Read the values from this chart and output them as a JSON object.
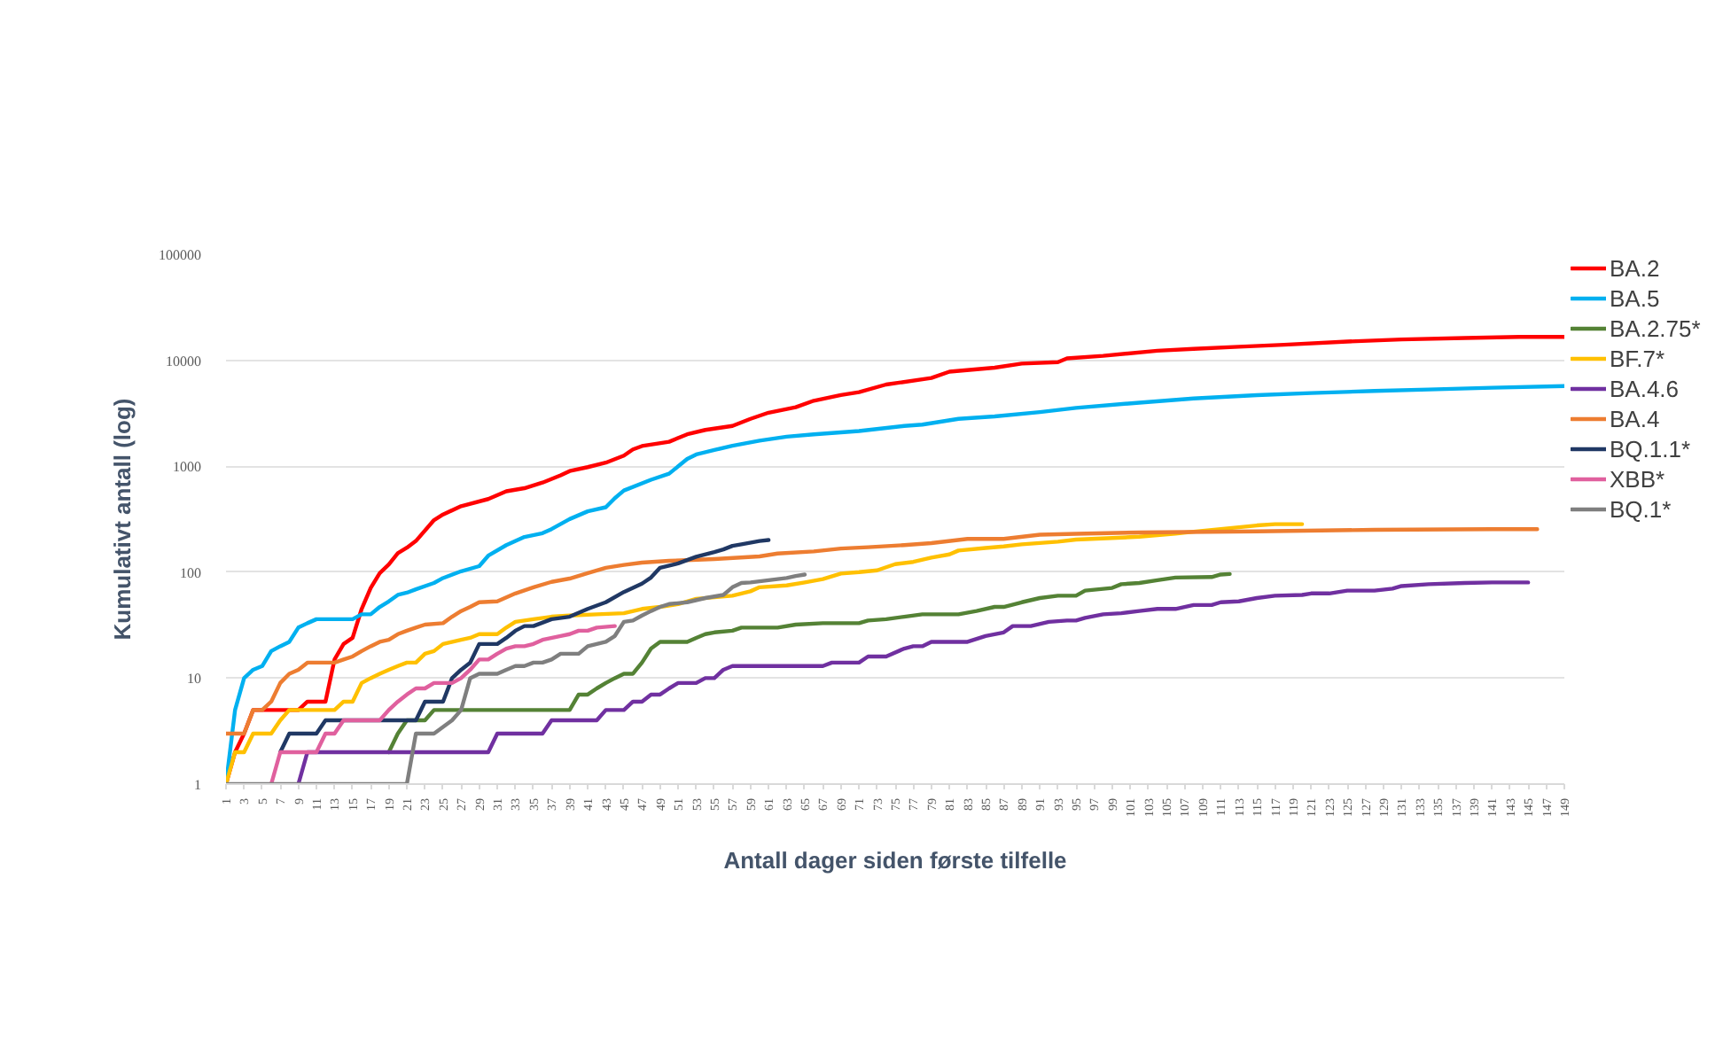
{
  "chart_data": {
    "type": "line",
    "xlabel": "Antall dager siden første tilfelle",
    "ylabel": "Kumulativt antall (log)",
    "log": "y",
    "xlim": [
      1,
      149
    ],
    "ylim": [
      1,
      100000
    ],
    "xticks": [
      1,
      3,
      5,
      7,
      9,
      11,
      13,
      15,
      17,
      19,
      21,
      23,
      25,
      27,
      29,
      31,
      33,
      35,
      37,
      39,
      41,
      43,
      45,
      47,
      49,
      51,
      53,
      55,
      57,
      59,
      61,
      63,
      65,
      67,
      69,
      71,
      73,
      75,
      77,
      79,
      81,
      83,
      85,
      87,
      89,
      91,
      93,
      95,
      97,
      99,
      101,
      103,
      105,
      107,
      109,
      111,
      113,
      115,
      117,
      119,
      121,
      123,
      125,
      127,
      129,
      131,
      133,
      135,
      137,
      139,
      141,
      143,
      145,
      147,
      149
    ],
    "yticks": [
      1,
      10,
      100,
      1000,
      10000,
      100000
    ],
    "grid": "y",
    "legend": "right",
    "line_style": "solid",
    "series": [
      {
        "name": "BA.2",
        "color": "#ff0000",
        "x": [
          1,
          2,
          3,
          4,
          9,
          10,
          12,
          13,
          14,
          15,
          16,
          17,
          18,
          19,
          20,
          21,
          22,
          24,
          25,
          27,
          30,
          32,
          34,
          36,
          38,
          39,
          41,
          43,
          45,
          46,
          47,
          50,
          52,
          54,
          57,
          59,
          61,
          64,
          66,
          69,
          71,
          74,
          79,
          81,
          86,
          89,
          93,
          94,
          98,
          104,
          108,
          113,
          118,
          125,
          131,
          138,
          144,
          149
        ],
        "values": [
          1,
          2,
          3,
          5,
          5,
          6,
          6,
          15,
          21,
          24,
          45,
          71,
          98,
          118,
          151,
          170,
          197,
          310,
          350,
          420,
          490,
          580,
          620,
          700,
          820,
          900,
          980,
          1080,
          1260,
          1440,
          1550,
          1700,
          2000,
          2200,
          2400,
          2800,
          3200,
          3600,
          4150,
          4700,
          5000,
          5900,
          6800,
          7800,
          8500,
          9300,
          9600,
          10400,
          11000,
          12300,
          12800,
          13400,
          14000,
          15000,
          15700,
          16200,
          16600,
          16600
        ]
      },
      {
        "name": "BA.5",
        "color": "#00b0f0",
        "x": [
          1,
          2,
          3,
          4,
          5,
          6,
          7,
          8,
          9,
          10,
          11,
          15,
          16,
          17,
          18,
          19,
          20,
          21,
          22,
          24,
          25,
          27,
          29,
          30,
          32,
          34,
          36,
          37,
          39,
          41,
          43,
          44,
          45,
          48,
          50,
          52,
          53,
          55,
          57,
          60,
          63,
          66,
          71,
          76,
          78,
          82,
          86,
          91,
          95,
          102,
          108,
          115,
          121,
          128,
          134,
          141,
          149
        ],
        "values": [
          1,
          5,
          10,
          12,
          13,
          18,
          20,
          22,
          30,
          33,
          36,
          36,
          40,
          40,
          47,
          53,
          61,
          64,
          69,
          79,
          88,
          102,
          114,
          143,
          180,
          215,
          233,
          255,
          317,
          375,
          410,
          500,
          590,
          745,
          850,
          1170,
          1290,
          1420,
          1560,
          1740,
          1900,
          2000,
          2150,
          2400,
          2470,
          2800,
          2950,
          3240,
          3550,
          3980,
          4360,
          4680,
          4900,
          5130,
          5300,
          5500,
          5700
        ]
      },
      {
        "name": "BA.2.75*",
        "color": "#548235",
        "x": [
          19,
          20,
          21,
          23,
          24,
          39,
          40,
          41,
          42,
          43,
          44,
          45,
          46,
          47,
          48,
          49,
          50,
          52,
          53,
          54,
          55,
          57,
          58,
          62,
          64,
          67,
          71,
          72,
          74,
          76,
          78,
          82,
          84,
          86,
          87,
          89,
          91,
          93,
          95,
          96,
          99,
          100,
          102,
          104,
          106,
          110,
          111,
          112
        ],
        "values": [
          2,
          3,
          4,
          4,
          5,
          5,
          7,
          7,
          8,
          9,
          10,
          11,
          11,
          14,
          19,
          22,
          22,
          22,
          24,
          26,
          27,
          28,
          30,
          30,
          32,
          33,
          33,
          35,
          36,
          38,
          40,
          40,
          43,
          47,
          47,
          52,
          57,
          60,
          60,
          67,
          71,
          77,
          79,
          84,
          89,
          90,
          95,
          96
        ]
      },
      {
        "name": "BF.7*",
        "color": "#ffc000",
        "x": [
          1,
          2,
          3,
          4,
          6,
          7,
          8,
          13,
          14,
          15,
          16,
          17,
          18,
          19,
          20,
          21,
          22,
          23,
          24,
          25,
          27,
          28,
          29,
          31,
          32,
          33,
          35,
          37,
          39,
          42,
          45,
          47,
          49,
          51,
          53,
          57,
          59,
          60,
          63,
          65,
          67,
          69,
          71,
          73,
          75,
          77,
          79,
          81,
          82,
          85,
          87,
          89,
          93,
          95,
          99,
          102,
          106,
          108,
          111,
          115,
          117,
          120
        ],
        "values": [
          1,
          2,
          2,
          3,
          3,
          4,
          5,
          5,
          6,
          6,
          9,
          10,
          11,
          12,
          13,
          14,
          14,
          17,
          18,
          21,
          23,
          24,
          26,
          26,
          30,
          34,
          36,
          38,
          39,
          40,
          41,
          45,
          47,
          50,
          56,
          60,
          66,
          72,
          75,
          80,
          86,
          97,
          100,
          104,
          119,
          125,
          137,
          147,
          160,
          169,
          175,
          183,
          194,
          203,
          210,
          216,
          231,
          241,
          255,
          276,
          284,
          284
        ]
      },
      {
        "name": "BA.4.6",
        "color": "#7030a0",
        "x": [
          9,
          10,
          30,
          31,
          36,
          37,
          42,
          43,
          45,
          46,
          47,
          48,
          49,
          50,
          51,
          53,
          54,
          55,
          56,
          57,
          67,
          68,
          71,
          72,
          74,
          76,
          77,
          78,
          79,
          83,
          85,
          87,
          88,
          90,
          92,
          94,
          95,
          96,
          98,
          100,
          102,
          104,
          106,
          108,
          110,
          111,
          113,
          115,
          117,
          120,
          121,
          123,
          125,
          128,
          130,
          131,
          134,
          138,
          141,
          145
        ],
        "values": [
          1,
          2,
          2,
          3,
          3,
          4,
          4,
          5,
          5,
          6,
          6,
          7,
          7,
          8,
          9,
          9,
          10,
          10,
          12,
          13,
          13,
          14,
          14,
          16,
          16,
          19,
          20,
          20,
          22,
          22,
          25,
          27,
          31,
          31,
          34,
          35,
          35,
          37,
          40,
          41,
          43,
          45,
          45,
          49,
          49,
          52,
          53,
          57,
          60,
          61,
          63,
          63,
          67,
          67,
          70,
          74,
          77,
          79,
          80,
          80
        ]
      },
      {
        "name": "BA.4",
        "color": "#ed7d31",
        "x": [
          1,
          3,
          4,
          5,
          6,
          7,
          8,
          9,
          10,
          13,
          14,
          15,
          16,
          17,
          18,
          19,
          20,
          21,
          22,
          23,
          25,
          26,
          27,
          28,
          29,
          31,
          33,
          35,
          37,
          39,
          41,
          43,
          45,
          47,
          50,
          55,
          60,
          62,
          66,
          69,
          72,
          76,
          79,
          83,
          87,
          91,
          95,
          102,
          115,
          128,
          141,
          146
        ],
        "values": [
          3,
          3,
          5,
          5,
          6,
          9,
          11,
          12,
          14,
          14,
          15,
          16,
          18,
          20,
          22,
          23,
          26,
          28,
          30,
          32,
          33,
          38,
          43,
          47,
          52,
          53,
          63,
          72,
          81,
          87,
          98,
          110,
          117,
          123,
          128,
          133,
          141,
          150,
          157,
          167,
          172,
          180,
          188,
          206,
          206,
          226,
          230,
          237,
          243,
          251,
          255,
          255
        ]
      },
      {
        "name": "BQ.1.1*",
        "color": "#203864",
        "x": [
          7,
          8,
          11,
          12,
          22,
          23,
          25,
          26,
          27,
          28,
          29,
          31,
          32,
          33,
          34,
          35,
          37,
          39,
          41,
          43,
          45,
          47,
          48,
          49,
          51,
          53,
          55,
          56,
          57,
          58,
          60,
          61
        ],
        "values": [
          2,
          3,
          3,
          4,
          4,
          6,
          6,
          10,
          12,
          14,
          21,
          21,
          24,
          28,
          31,
          31,
          36,
          38,
          45,
          52,
          65,
          78,
          89,
          110,
          121,
          140,
          155,
          164,
          177,
          183,
          197,
          201
        ]
      },
      {
        "name": "XBB*",
        "color": "#e0609e",
        "x": [
          6,
          7,
          11,
          12,
          13,
          14,
          18,
          19,
          20,
          21,
          22,
          23,
          24,
          26,
          27,
          28,
          29,
          30,
          31,
          32,
          33,
          34,
          35,
          36,
          38,
          39,
          40,
          41,
          42,
          44
        ],
        "values": [
          1,
          2,
          2,
          3,
          3,
          4,
          4,
          5,
          6,
          7,
          8,
          8,
          9,
          9,
          10,
          12,
          15,
          15,
          17,
          19,
          20,
          20,
          21,
          23,
          25,
          26,
          28,
          28,
          30,
          31
        ]
      },
      {
        "name": "BQ.1*",
        "color": "#7f7f7f",
        "x": [
          1,
          21,
          22,
          24,
          26,
          27,
          28,
          29,
          31,
          32,
          33,
          34,
          35,
          36,
          37,
          38,
          40,
          41,
          42,
          43,
          44,
          45,
          46,
          47,
          48,
          49,
          50,
          52,
          54,
          56,
          57,
          58,
          59,
          61,
          63,
          64,
          65
        ],
        "values": [
          1,
          1,
          3,
          3,
          4,
          5,
          10,
          11,
          11,
          12,
          13,
          13,
          14,
          14,
          15,
          17,
          17,
          20,
          21,
          22,
          25,
          34,
          35,
          39,
          43,
          47,
          50,
          52,
          57,
          61,
          72,
          79,
          80,
          84,
          88,
          92,
          95
        ]
      }
    ]
  }
}
